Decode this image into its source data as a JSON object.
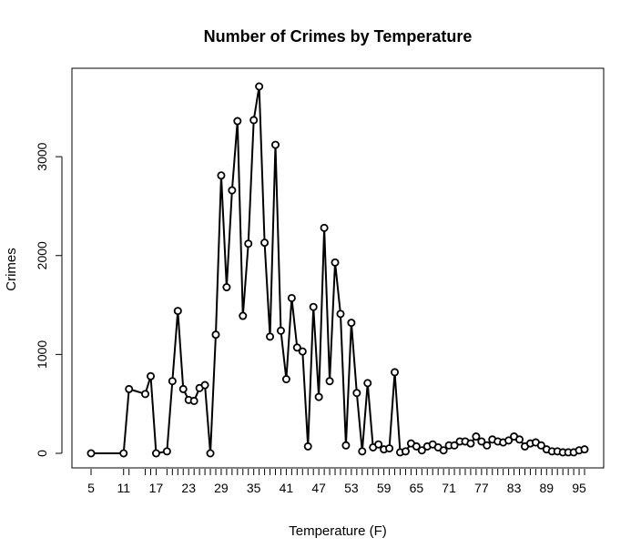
{
  "chart_data": {
    "type": "line",
    "title": "Number of Crimes by Temperature",
    "xlabel": "Temperature (F)",
    "ylabel": "Crimes",
    "xlim": [
      5,
      96
    ],
    "ylim": [
      0,
      3710
    ],
    "x_tick_labels": [
      "5",
      "11",
      "17",
      "23",
      "29",
      "35",
      "41",
      "47",
      "53",
      "59",
      "65",
      "71",
      "77",
      "83",
      "89",
      "95"
    ],
    "y_tick_labels": [
      "0",
      "1000",
      "2000",
      "3000"
    ],
    "grid": false,
    "legend": "none",
    "series": [
      {
        "color": "#000000",
        "marker": "open-circle",
        "x": [
          5,
          11,
          12,
          15,
          16,
          17,
          19,
          20,
          21,
          22,
          23,
          24,
          25,
          26,
          27,
          28,
          29,
          30,
          31,
          32,
          33,
          34,
          35,
          36,
          37,
          38,
          39,
          40,
          41,
          42,
          43,
          44,
          45,
          46,
          47,
          48,
          49,
          50,
          51,
          52,
          53,
          54,
          55,
          56,
          57,
          58,
          59,
          60,
          61,
          62,
          63,
          64,
          65,
          66,
          67,
          68,
          69,
          70,
          71,
          72,
          73,
          74,
          75,
          76,
          77,
          78,
          79,
          80,
          81,
          82,
          83,
          84,
          85,
          86,
          87,
          88,
          89,
          90,
          91,
          92,
          93,
          94,
          95,
          96
        ],
        "values": [
          0,
          0,
          650,
          600,
          780,
          0,
          20,
          730,
          1440,
          650,
          540,
          530,
          660,
          690,
          0,
          1200,
          2810,
          1680,
          2660,
          3360,
          1390,
          2120,
          3370,
          3710,
          2130,
          1180,
          3120,
          1240,
          750,
          1570,
          1070,
          1030,
          70,
          1480,
          570,
          2280,
          730,
          1930,
          1410,
          80,
          1320,
          610,
          20,
          710,
          60,
          90,
          40,
          50,
          820,
          10,
          20,
          100,
          70,
          30,
          70,
          90,
          60,
          30,
          80,
          80,
          120,
          120,
          100,
          170,
          120,
          80,
          140,
          120,
          110,
          130,
          170,
          140,
          70,
          100,
          110,
          80,
          40,
          20,
          20,
          10,
          10,
          10,
          30,
          40
        ]
      }
    ]
  }
}
